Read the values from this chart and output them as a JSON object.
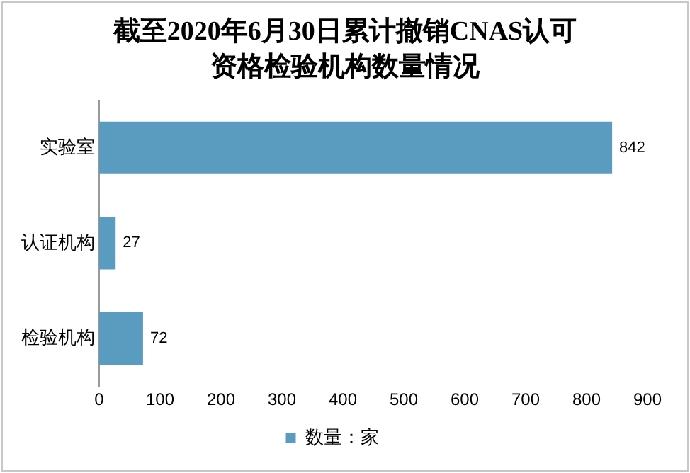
{
  "chart_data": {
    "type": "bar",
    "orientation": "horizontal",
    "title": "截至2020年6月30日累计撤销CNAS认可资格检验机构数量情况",
    "categories": [
      "实验室",
      "认证机构",
      "检验机构"
    ],
    "series": [
      {
        "name": "数量：家",
        "color": "#5a9cc0",
        "values": [
          842,
          27,
          72
        ]
      }
    ],
    "xlim": [
      0,
      900
    ],
    "xticks": [
      0,
      100,
      200,
      300,
      400,
      500,
      600,
      700,
      800,
      900
    ],
    "grid": false,
    "legend": "bottom",
    "data_labels": true
  }
}
